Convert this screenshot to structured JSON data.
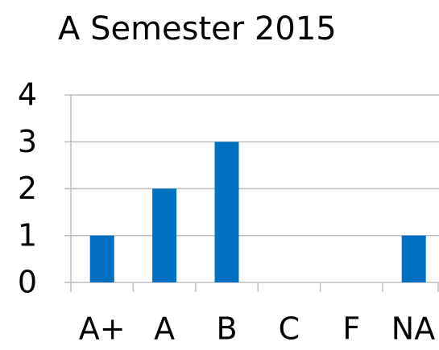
{
  "chart_data": {
    "type": "bar",
    "title": "A Semester 2015",
    "categories": [
      "A+",
      "A",
      "B",
      "C",
      "F",
      "NA"
    ],
    "values": [
      1,
      2,
      3,
      0,
      0,
      1
    ],
    "color": "#0070c0",
    "ylim": [
      0,
      4
    ],
    "yticks": [
      0,
      1,
      2,
      3,
      4
    ],
    "grid": true
  }
}
